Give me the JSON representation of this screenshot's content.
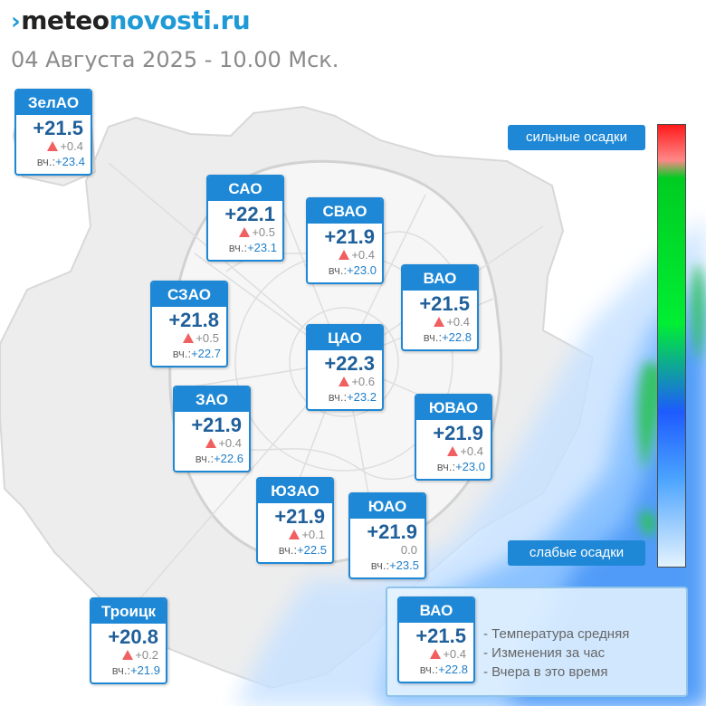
{
  "header": {
    "logo_mark": "›",
    "logo_part1": "meteo",
    "logo_part2": "novosti.ru",
    "datetime": "04 Августа 2025 - 10.00 Мск."
  },
  "colors": {
    "accent": "#1e88d6",
    "temp_text": "#1f5f9a",
    "rise_marker": "#f06060"
  },
  "icons": {
    "rise": "triangle-up-icon"
  },
  "yesterday_label": "вч.:",
  "districts": [
    {
      "id": "zelao",
      "name": "ЗелАО",
      "temp": "+21.5",
      "change": "+0.4",
      "rise": true,
      "yesterday": "+23.4"
    },
    {
      "id": "sao",
      "name": "САО",
      "temp": "+22.1",
      "change": "+0.5",
      "rise": true,
      "yesterday": "+23.1"
    },
    {
      "id": "svao",
      "name": "СВАО",
      "temp": "+21.9",
      "change": "+0.4",
      "rise": true,
      "yesterday": "+23.0"
    },
    {
      "id": "vao",
      "name": "ВАО",
      "temp": "+21.5",
      "change": "+0.4",
      "rise": true,
      "yesterday": "+22.8"
    },
    {
      "id": "szao",
      "name": "СЗАО",
      "temp": "+21.8",
      "change": "+0.5",
      "rise": true,
      "yesterday": "+22.7"
    },
    {
      "id": "cao",
      "name": "ЦАО",
      "temp": "+22.3",
      "change": "+0.6",
      "rise": true,
      "yesterday": "+23.2"
    },
    {
      "id": "zao",
      "name": "ЗАО",
      "temp": "+21.9",
      "change": "+0.4",
      "rise": true,
      "yesterday": "+22.6"
    },
    {
      "id": "yuvao",
      "name": "ЮВАО",
      "temp": "+21.9",
      "change": "+0.4",
      "rise": true,
      "yesterday": "+23.0"
    },
    {
      "id": "yuzao",
      "name": "ЮЗАО",
      "temp": "+21.9",
      "change": "+0.1",
      "rise": true,
      "yesterday": "+22.5"
    },
    {
      "id": "yuao",
      "name": "ЮАО",
      "temp": "+21.9",
      "change": "0.0",
      "rise": false,
      "yesterday": "+23.5"
    },
    {
      "id": "troitsk",
      "name": "Троицк",
      "temp": "+20.8",
      "change": "+0.2",
      "rise": true,
      "yesterday": "+21.9"
    }
  ],
  "precip_scale": {
    "top_label": "сильные осадки",
    "bottom_label": "слабые осадки"
  },
  "legend": {
    "sample": {
      "name": "ВАО",
      "temp": "+21.5",
      "change": "+0.4",
      "rise": true,
      "yesterday": "+22.8"
    },
    "lines": [
      "- Температура средняя",
      "- Изменения за час",
      "- Вчера в это время"
    ]
  }
}
